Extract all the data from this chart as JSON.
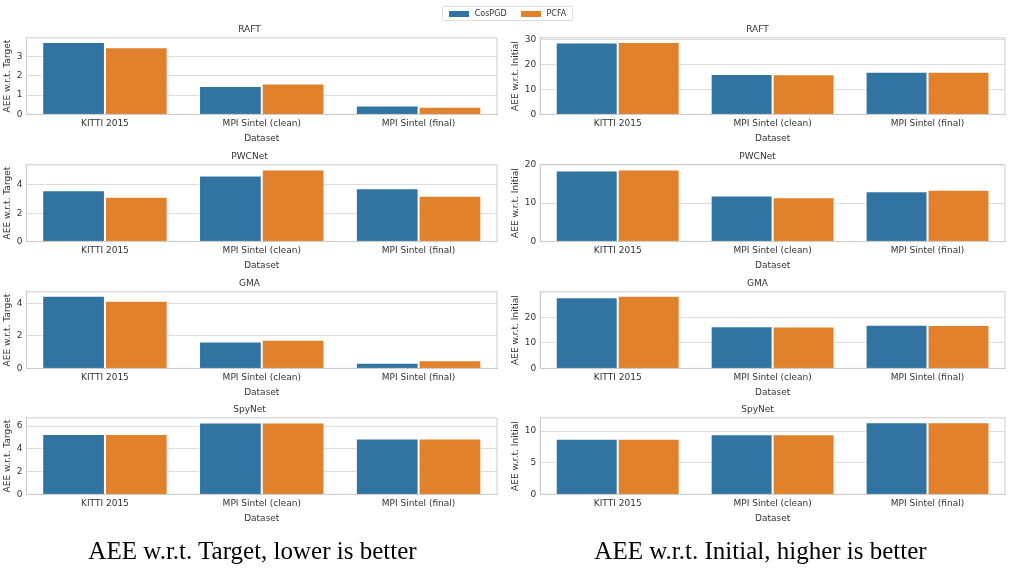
{
  "chart_data": [
    {
      "type": "bar",
      "title": "RAFT",
      "xlabel": "Dataset",
      "ylabel": "AEE w.r.t. Target",
      "categories": [
        "KITTI 2015",
        "MPI Sintel (clean)",
        "MPI Sintel (final)"
      ],
      "legend": "top",
      "grid": "y",
      "ylim": [
        0,
        3.95
      ],
      "yticks": [
        0,
        1,
        2,
        3
      ],
      "series": [
        {
          "name": "CosPGD",
          "color": "#3274a1",
          "values": [
            3.73,
            1.47,
            0.46
          ]
        },
        {
          "name": "PCFA",
          "color": "#e1812c",
          "values": [
            3.46,
            1.59,
            0.4
          ]
        }
      ]
    },
    {
      "type": "bar",
      "title": "RAFT",
      "xlabel": "Dataset",
      "ylabel": "AEE w.r.t. Initial",
      "categories": [
        "KITTI 2015",
        "MPI Sintel (clean)",
        "MPI Sintel (final)"
      ],
      "grid": "y",
      "ylim": [
        0,
        30.6
      ],
      "yticks": [
        0,
        10,
        20,
        30
      ],
      "series": [
        {
          "color": "#3274a1",
          "values": [
            28.7,
            16.1,
            17.0
          ]
        },
        {
          "color": "#e1812c",
          "values": [
            28.9,
            16.0,
            17.0
          ]
        }
      ]
    },
    {
      "type": "bar",
      "title": "PWCNet",
      "xlabel": "Dataset",
      "ylabel": "AEE w.r.t. Target",
      "categories": [
        "KITTI 2015",
        "MPI Sintel (clean)",
        "MPI Sintel (final)"
      ],
      "grid": "y",
      "ylim": [
        0,
        5.43
      ],
      "yticks": [
        0,
        2,
        4
      ],
      "series": [
        {
          "color": "#3274a1",
          "values": [
            3.63,
            4.67,
            3.76
          ]
        },
        {
          "color": "#e1812c",
          "values": [
            3.16,
            5.09,
            3.24
          ]
        }
      ]
    },
    {
      "type": "bar",
      "title": "PWCNet",
      "xlabel": "Dataset",
      "ylabel": "AEE w.r.t. Initial",
      "categories": [
        "KITTI 2015",
        "MPI Sintel (clean)",
        "MPI Sintel (final)"
      ],
      "grid": "y",
      "ylim": [
        0,
        20
      ],
      "yticks": [
        0,
        10,
        20
      ],
      "series": [
        {
          "color": "#3274a1",
          "values": [
            18.5,
            12.0,
            13.1
          ]
        },
        {
          "color": "#e1812c",
          "values": [
            18.8,
            11.5,
            13.5
          ]
        }
      ]
    },
    {
      "type": "bar",
      "title": "GMA",
      "xlabel": "Dataset",
      "ylabel": "AEE w.r.t. Target",
      "categories": [
        "KITTI 2015",
        "MPI Sintel (clean)",
        "MPI Sintel (final)"
      ],
      "grid": "y",
      "ylim": [
        0,
        4.71
      ],
      "yticks": [
        0,
        2,
        4
      ],
      "series": [
        {
          "color": "#3274a1",
          "values": [
            4.46,
            1.65,
            0.34
          ]
        },
        {
          "color": "#e1812c",
          "values": [
            4.16,
            1.76,
            0.5
          ]
        }
      ]
    },
    {
      "type": "bar",
      "title": "GMA",
      "xlabel": "Dataset",
      "ylabel": "AEE w.r.t. Initial",
      "categories": [
        "KITTI 2015",
        "MPI Sintel (clean)",
        "MPI Sintel (final)"
      ],
      "grid": "y",
      "ylim": [
        0,
        30.1
      ],
      "yticks": [
        0,
        10,
        20
      ],
      "series": [
        {
          "color": "#3274a1",
          "values": [
            28.0,
            16.6,
            17.2
          ]
        },
        {
          "color": "#e1812c",
          "values": [
            28.5,
            16.5,
            17.1
          ]
        }
      ]
    },
    {
      "type": "bar",
      "title": "SpyNet",
      "xlabel": "Dataset",
      "ylabel": "AEE w.r.t. Target",
      "categories": [
        "KITTI 2015",
        "MPI Sintel (clean)",
        "MPI Sintel (final)"
      ],
      "grid": "y",
      "ylim": [
        0,
        6.72
      ],
      "yticks": [
        0,
        2,
        4,
        6
      ],
      "annotations": [
        "AEE w.r.t. Target, lower is better"
      ],
      "series": [
        {
          "color": "#3274a1",
          "values": [
            5.3,
            6.3,
            4.9
          ]
        },
        {
          "color": "#e1812c",
          "values": [
            5.3,
            6.3,
            4.9
          ]
        }
      ]
    },
    {
      "type": "bar",
      "title": "SpyNet",
      "xlabel": "Dataset",
      "ylabel": "AEE w.r.t. Initial",
      "categories": [
        "KITTI 2015",
        "MPI Sintel (clean)",
        "MPI Sintel (final)"
      ],
      "grid": "y",
      "ylim": [
        0,
        12.1
      ],
      "yticks": [
        0,
        5,
        10
      ],
      "annotations": [
        "AEE w.r.t. Initial, higher is better"
      ],
      "series": [
        {
          "color": "#3274a1",
          "values": [
            8.8,
            9.5,
            11.4
          ]
        },
        {
          "color": "#e1812c",
          "values": [
            8.8,
            9.5,
            11.4
          ]
        }
      ]
    }
  ]
}
